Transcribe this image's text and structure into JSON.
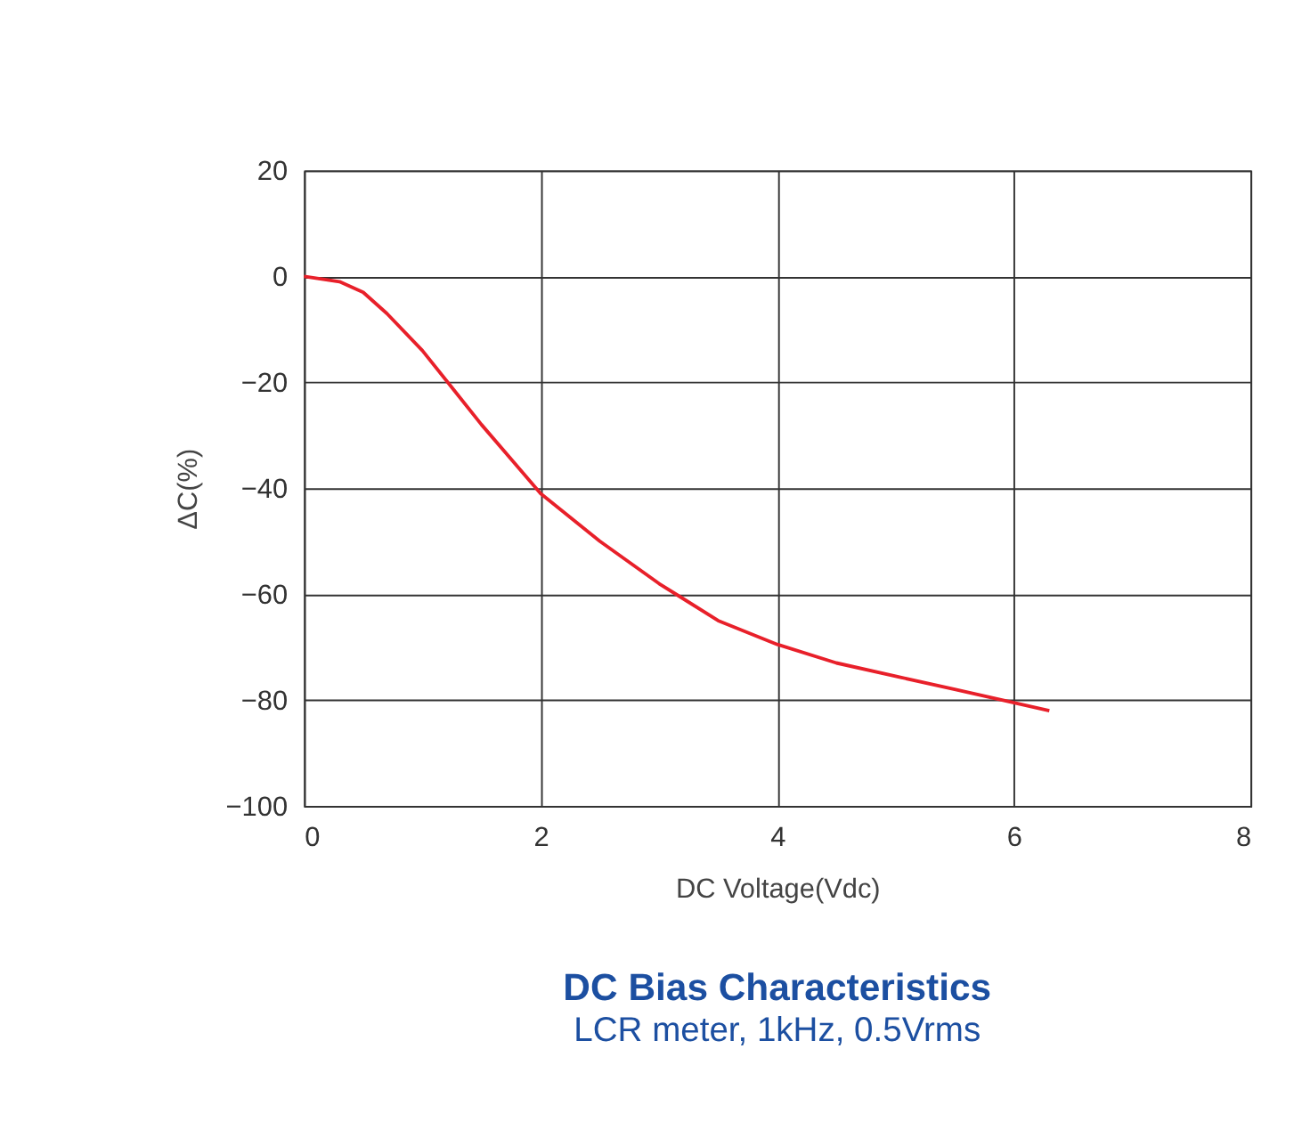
{
  "chart_data": {
    "type": "line",
    "title": "DC Bias Characteristics",
    "subtitle": "LCR meter, 1kHz, 0.5Vrms",
    "xlabel": "DC Voltage(Vdc)",
    "ylabel": "ΔC(%)",
    "x": [
      0,
      0.3,
      0.5,
      0.7,
      1,
      1.5,
      2,
      2.5,
      3,
      3.5,
      4,
      4.5,
      5,
      5.5,
      6,
      6.3
    ],
    "series": [
      {
        "color": "#e8202a",
        "values": [
          0,
          -1,
          -3,
          -7,
          -14,
          -28,
          -41,
          -50,
          -58,
          -65,
          -69.5,
          -73,
          -75.5,
          -78,
          -80.5,
          -82
        ]
      }
    ],
    "xlim": [
      0,
      8
    ],
    "xticks": [
      0,
      2,
      4,
      6,
      8
    ],
    "ylim": [
      -100,
      20
    ],
    "yticks": [
      -100,
      -80,
      -60,
      -40,
      -20,
      0,
      20
    ],
    "grid": true,
    "marker": "none",
    "line_style": "solid"
  }
}
